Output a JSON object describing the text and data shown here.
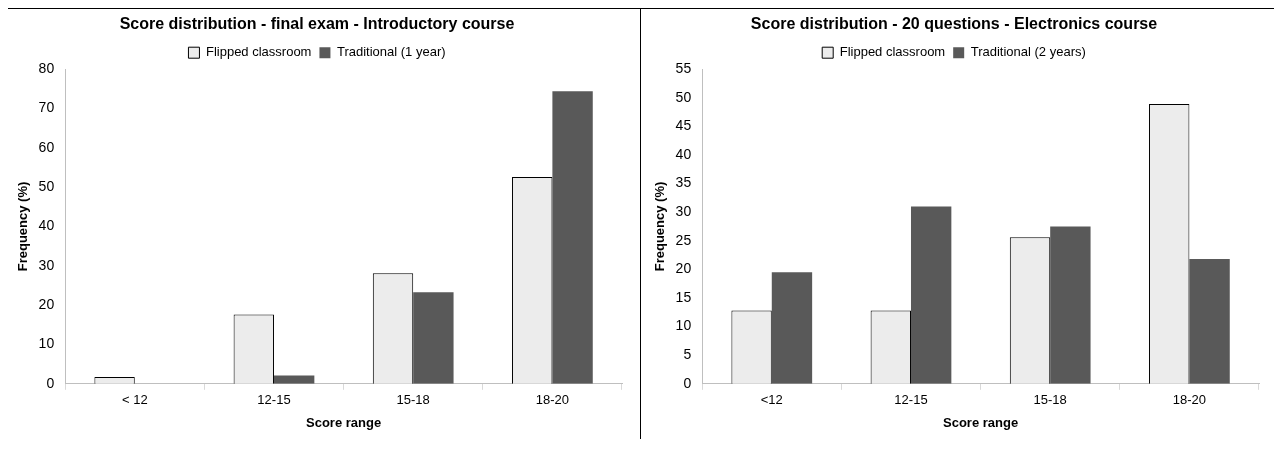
{
  "chart_data": [
    {
      "type": "bar",
      "title": "Score distribution - final exam - Introductory course",
      "xlabel": "Score range",
      "ylabel": "Frequency (%)",
      "categories": [
        "< 12",
        "12-15",
        "15-18",
        "18-20"
      ],
      "series": [
        {
          "name": "Flipped classroom",
          "color": "#ececec",
          "values": [
            1.7,
            17.6,
            28.1,
            52.6
          ]
        },
        {
          "name": "Traditional (1 year)",
          "color": "#595959",
          "values": [
            0,
            2.1,
            23.3,
            74.4
          ]
        }
      ],
      "ylim": [
        0,
        80
      ],
      "yticks": [
        0,
        10,
        20,
        30,
        40,
        50,
        60,
        70,
        80
      ],
      "grid": false,
      "legend": "top"
    },
    {
      "type": "bar",
      "title": "Score distribution - 20 questions - Electronics course",
      "xlabel": "Score range",
      "ylabel": "Frequency (%)",
      "categories": [
        "<12",
        "12-15",
        "15-18",
        "18-20"
      ],
      "series": [
        {
          "name": "Flipped classroom",
          "color": "#ececec",
          "values": [
            12.8,
            12.8,
            25.6,
            48.9
          ]
        },
        {
          "name": "Traditional (2 years)",
          "color": "#595959",
          "values": [
            19.5,
            31.0,
            27.5,
            21.8
          ]
        }
      ],
      "ylim": [
        0,
        55
      ],
      "yticks": [
        0,
        5,
        10,
        15,
        20,
        25,
        30,
        35,
        40,
        45,
        50,
        55
      ],
      "grid": false,
      "legend": "top"
    }
  ]
}
